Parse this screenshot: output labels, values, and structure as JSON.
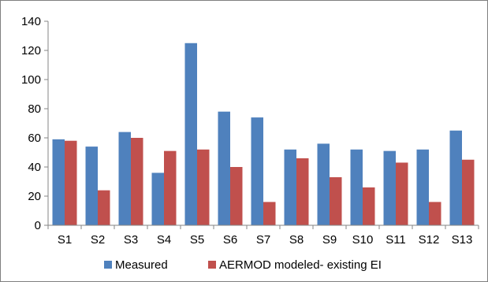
{
  "chart_data": {
    "type": "bar",
    "title": "",
    "xlabel": "",
    "ylabel": "",
    "categories": [
      "S1",
      "S2",
      "S3",
      "S4",
      "S5",
      "S6",
      "S7",
      "S8",
      "S9",
      "S10",
      "S11",
      "S12",
      "S13"
    ],
    "series": [
      {
        "name": "Measured",
        "color": "#4f81bd",
        "values": [
          59,
          54,
          64,
          36,
          125,
          78,
          74,
          52,
          56,
          52,
          51,
          52,
          65
        ]
      },
      {
        "name": "AERMOD modeled- existing EI",
        "color": "#c0504d",
        "values": [
          58,
          24,
          60,
          51,
          52,
          40,
          16,
          46,
          33,
          26,
          43,
          16,
          45
        ]
      }
    ],
    "ylim": [
      0,
      140
    ],
    "yticks": [
      0,
      20,
      40,
      60,
      80,
      100,
      120,
      140
    ],
    "grid": false,
    "legend_position": "bottom"
  }
}
